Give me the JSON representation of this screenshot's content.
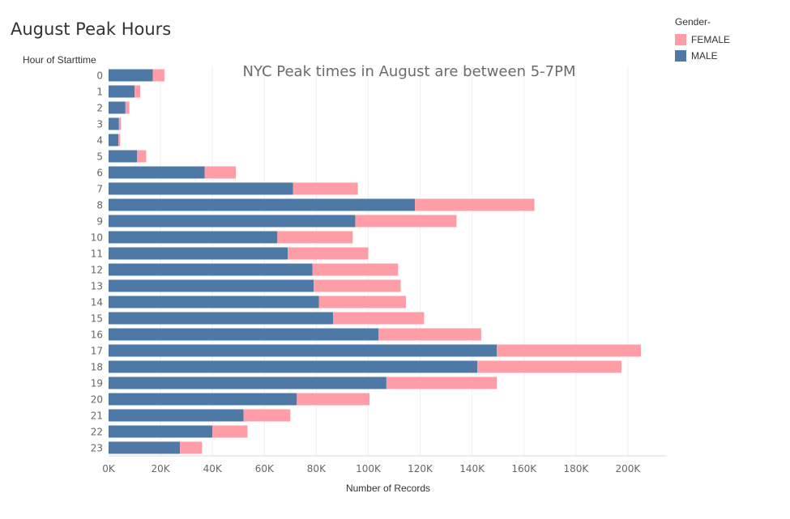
{
  "title": "August Peak Hours",
  "colors": {
    "female": "#FF9DA7",
    "male": "#4E79A7"
  },
  "chart_data": {
    "type": "bar",
    "orientation": "horizontal",
    "stacked": true,
    "title": "August Peak Hours",
    "annotation": "NYC Peak times in August are between 5-7PM",
    "ylabel": "Hour of Starttime",
    "xlabel": "Number of Records",
    "xlim": [
      0,
      215000
    ],
    "xticks": [
      0,
      20000,
      40000,
      60000,
      80000,
      100000,
      120000,
      140000,
      160000,
      180000,
      200000
    ],
    "xtick_labels": [
      "0K",
      "20K",
      "40K",
      "60K",
      "80K",
      "100K",
      "120K",
      "140K",
      "160K",
      "180K",
      "200K"
    ],
    "grid": true,
    "legend": {
      "title": "Gender-",
      "position": "top-right",
      "entries": [
        "FEMALE",
        "MALE"
      ]
    },
    "categories": [
      "0",
      "1",
      "2",
      "3",
      "4",
      "5",
      "6",
      "7",
      "8",
      "9",
      "10",
      "11",
      "12",
      "13",
      "14",
      "15",
      "16",
      "17",
      "18",
      "19",
      "20",
      "21",
      "22",
      "23"
    ],
    "series": [
      {
        "name": "MALE",
        "values": [
          17000,
          10000,
          6500,
          4000,
          3800,
          11000,
          37000,
          71000,
          118000,
          95000,
          65000,
          69000,
          78500,
          79000,
          81000,
          86500,
          104000,
          149500,
          142000,
          107000,
          72500,
          52000,
          40000,
          27500
        ]
      },
      {
        "name": "FEMALE",
        "values": [
          4500,
          2200,
          1500,
          800,
          700,
          3500,
          12000,
          25000,
          46000,
          39000,
          29000,
          31000,
          33000,
          33500,
          33500,
          35000,
          39500,
          55500,
          55500,
          42500,
          28000,
          18000,
          13500,
          8500
        ]
      }
    ]
  }
}
